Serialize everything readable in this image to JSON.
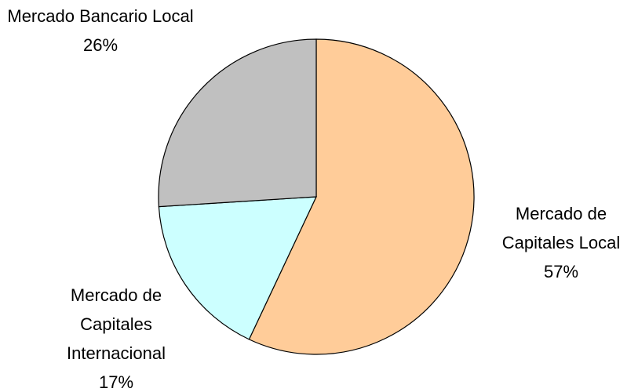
{
  "chart_data": {
    "type": "pie",
    "categories": [
      "Mercado de Capitales Local",
      "Mercado de Capitales Internacional",
      "Mercado Bancario Local"
    ],
    "values": [
      57,
      17,
      26
    ],
    "value_labels": [
      "57%",
      "17%",
      "26%"
    ],
    "colors": [
      "#ffcc99",
      "#ccffff",
      "#c0c0c0"
    ]
  }
}
